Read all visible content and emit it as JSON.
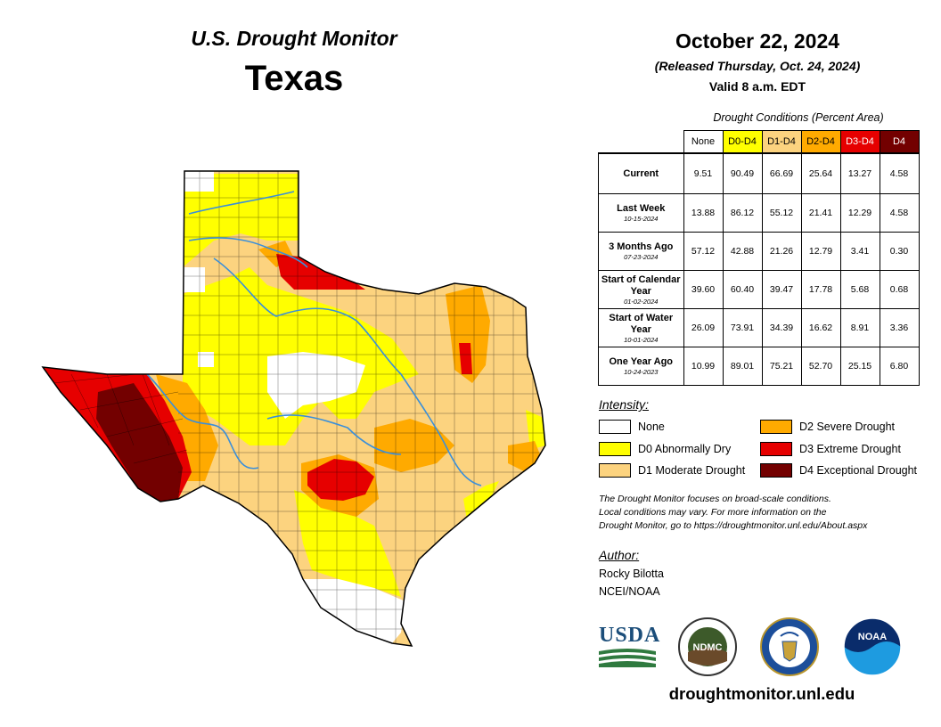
{
  "header": {
    "map_title": "U.S. Drought Monitor",
    "state": "Texas",
    "date": "October 22, 2024",
    "released": "(Released Thursday, Oct. 24, 2024)",
    "valid": "Valid 8 a.m. EDT"
  },
  "table": {
    "caption": "Drought Conditions (Percent Area)",
    "columns": [
      "None",
      "D0-D4",
      "D1-D4",
      "D2-D4",
      "D3-D4",
      "D4"
    ],
    "rows": [
      {
        "label": "Current",
        "sub": "",
        "values": [
          "9.51",
          "90.49",
          "66.69",
          "25.64",
          "13.27",
          "4.58"
        ]
      },
      {
        "label": "Last Week",
        "sub": "10-15-2024",
        "values": [
          "13.88",
          "86.12",
          "55.12",
          "21.41",
          "12.29",
          "4.58"
        ]
      },
      {
        "label": "3 Months Ago",
        "sub": "07-23-2024",
        "values": [
          "57.12",
          "42.88",
          "21.26",
          "12.79",
          "3.41",
          "0.30"
        ]
      },
      {
        "label": "Start of Calendar Year",
        "sub": "01-02-2024",
        "values": [
          "39.60",
          "60.40",
          "39.47",
          "17.78",
          "5.68",
          "0.68"
        ]
      },
      {
        "label": "Start of Water Year",
        "sub": "10-01-2024",
        "values": [
          "26.09",
          "73.91",
          "34.39",
          "16.62",
          "8.91",
          "3.36"
        ]
      },
      {
        "label": "One Year Ago",
        "sub": "10-24-2023",
        "values": [
          "10.99",
          "89.01",
          "75.21",
          "52.70",
          "25.15",
          "6.80"
        ]
      }
    ]
  },
  "legend": {
    "title": "Intensity:",
    "items": [
      {
        "label": "None",
        "color": "#ffffff"
      },
      {
        "label": "D0 Abnormally Dry",
        "color": "#ffff00"
      },
      {
        "label": "D1 Moderate Drought",
        "color": "#fcd37f"
      },
      {
        "label": "D2 Severe Drought",
        "color": "#ffaa00"
      },
      {
        "label": "D3 Extreme Drought",
        "color": "#e60000"
      },
      {
        "label": "D4 Exceptional Drought",
        "color": "#730000"
      }
    ]
  },
  "note": {
    "line1": "The Drought Monitor focuses on broad-scale conditions.",
    "line2": "Local conditions may vary. For more information on the",
    "line3": "Drought Monitor, go to https://droughtmonitor.unl.edu/About.aspx"
  },
  "author": {
    "label": "Author:",
    "name": "Rocky Bilotta",
    "org": "NCEI/NOAA"
  },
  "logos": {
    "usda": "USDA",
    "ndmc": "NDMC",
    "noaa": "NOAA"
  },
  "footer": {
    "website": "droughtmonitor.unl.edu"
  },
  "colors": {
    "none": "#ffffff",
    "d0": "#ffff00",
    "d1": "#fcd37f",
    "d2": "#ffaa00",
    "d3": "#e60000",
    "d4": "#730000",
    "river": "#3b8fd9"
  }
}
